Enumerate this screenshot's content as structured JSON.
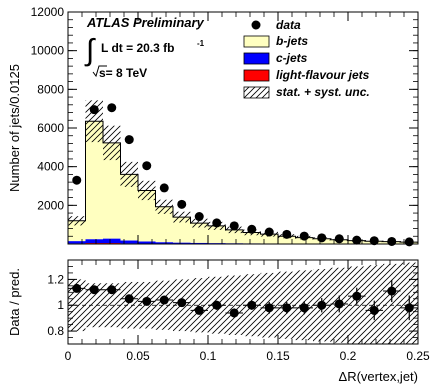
{
  "chart_data": {
    "type": "histogram",
    "atlas_label": "ATLAS Preliminary",
    "lumi_label": "L dt = 20.3 fb",
    "lumi_exponent": "-1",
    "energy_label": "s= 8 TeV",
    "xlabel": "ΔR(vertex,jet)",
    "ylabel_top": "Number of jets/0.0125",
    "ylabel_bottom": "Data / pred.",
    "xlim": [
      0,
      0.25
    ],
    "ylim_top": [
      0,
      12000
    ],
    "ylim_bottom": [
      0.7,
      1.35
    ],
    "bin_width": 0.0125,
    "x_ticks": [
      0,
      0.05,
      0.1,
      0.15,
      0.2,
      0.25
    ],
    "x_tick_labels": [
      "0",
      "0.05",
      "0.1",
      "0.15",
      "0.2",
      "0.25"
    ],
    "y_ticks_top": [
      2000,
      4000,
      6000,
      8000,
      10000,
      12000
    ],
    "y_tick_labels_top": [
      "2000",
      "4000",
      "6000",
      "8000",
      "10000",
      "12000"
    ],
    "y_ticks_bottom": [
      0.8,
      1,
      1.2
    ],
    "y_tick_labels_bottom": [
      "0.8",
      "1",
      "1.2"
    ],
    "legend": [
      {
        "label": "data",
        "kind": "marker"
      },
      {
        "label": "b-jets",
        "kind": "fill",
        "color": "#ffffc0"
      },
      {
        "label": "c-jets",
        "kind": "fill",
        "color": "#0000ff"
      },
      {
        "label": "light-flavour jets",
        "kind": "fill",
        "color": "#ff0000"
      },
      {
        "label": "stat. + syst. unc.",
        "kind": "hatch"
      }
    ],
    "series": [
      {
        "name": "b-jets",
        "color": "#ffffc0",
        "values": [
          1050,
          6100,
          4950,
          3420,
          2640,
          1830,
          1320,
          1020,
          890,
          690,
          560,
          480,
          380,
          310,
          250,
          200,
          160,
          130,
          110,
          90
        ]
      },
      {
        "name": "c-jets",
        "color": "#0000ff",
        "values": [
          120,
          200,
          230,
          150,
          110,
          80,
          60,
          50,
          40,
          35,
          30,
          25,
          20,
          18,
          16,
          14,
          12,
          10,
          9,
          8
        ]
      },
      {
        "name": "light-flavour jets",
        "color": "#ff0000",
        "values": [
          30,
          50,
          50,
          30,
          20,
          15,
          12,
          10,
          8,
          7,
          6,
          5,
          4,
          4,
          3,
          3,
          3,
          2,
          2,
          2
        ]
      }
    ],
    "data": {
      "x": [
        0.00625,
        0.01875,
        0.03125,
        0.04375,
        0.05625,
        0.06875,
        0.08125,
        0.09375,
        0.10625,
        0.11875,
        0.13125,
        0.14375,
        0.15625,
        0.16875,
        0.18125,
        0.19375,
        0.20625,
        0.21875,
        0.23125,
        0.24375
      ],
      "y": [
        3300,
        6950,
        7050,
        5400,
        4050,
        2900,
        2050,
        1420,
        1090,
        940,
        760,
        620,
        500,
        410,
        320,
        270,
        200,
        170,
        130,
        110
      ]
    },
    "uncertainty_fraction": [
      0.2,
      0.17,
      0.17,
      0.18,
      0.18,
      0.19,
      0.2,
      0.21,
      0.22,
      0.23,
      0.24,
      0.25,
      0.26,
      0.27,
      0.28,
      0.29,
      0.3,
      0.31,
      0.32,
      0.33
    ],
    "ratio": {
      "values": [
        1.13,
        1.12,
        1.12,
        1.05,
        1.03,
        1.04,
        1.02,
        0.96,
        1.0,
        0.94,
        1.0,
        0.98,
        0.98,
        0.98,
        1.0,
        1.01,
        1.07,
        0.96,
        1.11,
        0.98
      ],
      "errors": [
        0.01,
        0.01,
        0.01,
        0.01,
        0.01,
        0.01,
        0.015,
        0.015,
        0.02,
        0.02,
        0.02,
        0.03,
        0.03,
        0.035,
        0.04,
        0.05,
        0.05,
        0.06,
        0.07,
        0.08
      ],
      "reference": 1
    }
  }
}
